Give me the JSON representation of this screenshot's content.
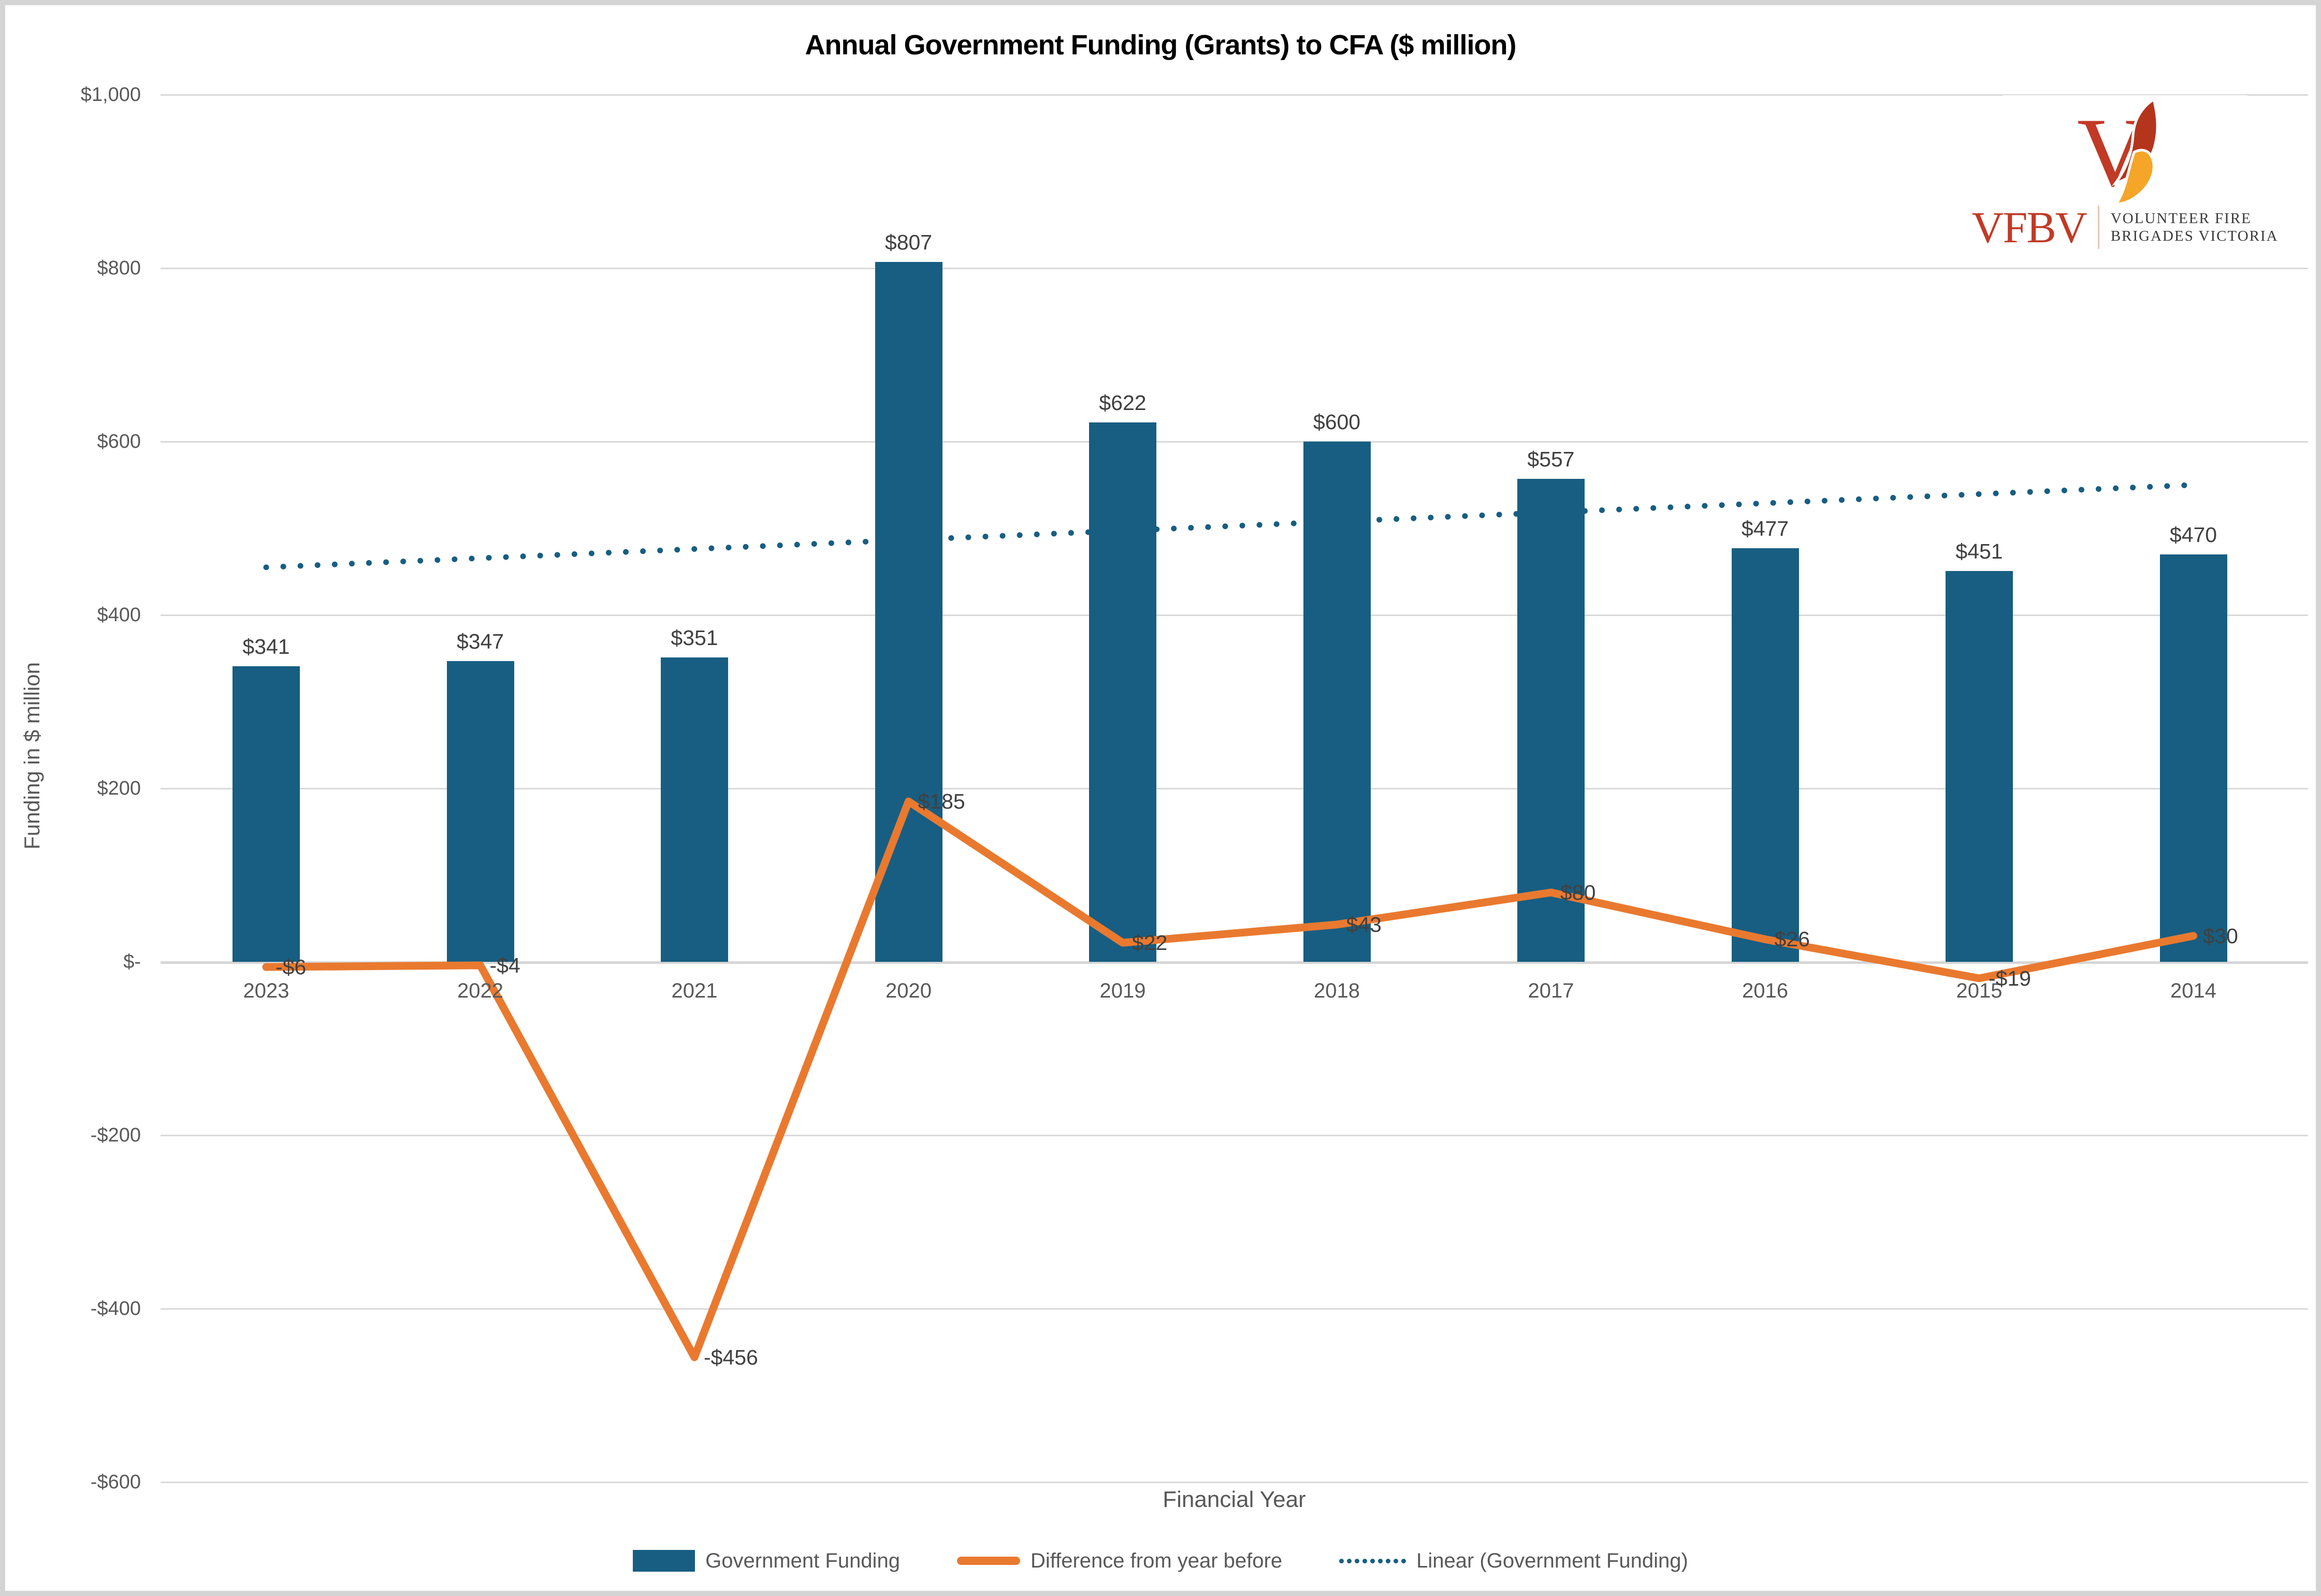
{
  "title": "Annual Government Funding (Grants) to CFA ($ million)",
  "y_axis": {
    "title": "Funding in $ million",
    "ticks": [
      {
        "value": 1000,
        "label": "$1,000"
      },
      {
        "value": 800,
        "label": "$800"
      },
      {
        "value": 600,
        "label": "$600"
      },
      {
        "value": 400,
        "label": "$400"
      },
      {
        "value": 200,
        "label": "$200"
      },
      {
        "value": 0,
        "label": "$-"
      },
      {
        "value": -200,
        "label": "-$200"
      },
      {
        "value": -400,
        "label": "-$400"
      },
      {
        "value": -600,
        "label": "-$600"
      }
    ]
  },
  "x_axis": {
    "title": "Financial Year"
  },
  "legend": {
    "items": [
      {
        "swatch": "bar",
        "label": "Government Funding"
      },
      {
        "swatch": "line",
        "label": "Difference from year before"
      },
      {
        "swatch": "dots",
        "label": "Linear (Government Funding)"
      }
    ]
  },
  "logo": {
    "acronym": "VFBV",
    "name_line1": "VOLUNTEER FIRE",
    "name_line2": "BRIGADES VICTORIA",
    "flame_icon": "flame-v-icon"
  },
  "colors": {
    "bar": "#175e82",
    "diff_line": "#e9792f",
    "trendline": "#175e82",
    "grid": "#d9d9d9",
    "axis_text": "#595959",
    "data_label_text": "#404040",
    "logo_red": "#c13a26",
    "logo_flame_red": "#b5341c",
    "logo_flame_orange": "#f5a528"
  },
  "chart_data": {
    "type": "bar",
    "title": "Annual Government Funding (Grants) to CFA ($ million)",
    "xlabel": "Financial Year",
    "ylabel": "Funding in $ million",
    "ylim": [
      -600,
      1000
    ],
    "ytick_step": 200,
    "grid": true,
    "legend_position": "bottom",
    "categories": [
      "2023",
      "2022",
      "2021",
      "2020",
      "2019",
      "2018",
      "2017",
      "2016",
      "2015",
      "2014"
    ],
    "series": [
      {
        "name": "Government Funding",
        "type": "bar",
        "values": [
          341,
          347,
          351,
          807,
          622,
          600,
          557,
          477,
          451,
          470
        ],
        "labels": [
          "$341",
          "$347",
          "$351",
          "$807",
          "$622",
          "$600",
          "$557",
          "$477",
          "$451",
          "$470"
        ]
      },
      {
        "name": "Difference from year before",
        "type": "line",
        "values": [
          -6,
          -4,
          -456,
          185,
          22,
          43,
          80,
          26,
          -19,
          30
        ],
        "labels": [
          "-$6",
          "-$4",
          "-$456",
          "$185",
          "$22",
          "$43",
          "$80",
          "$26",
          "-$19",
          "$30"
        ]
      },
      {
        "name": "Linear (Government Funding)",
        "type": "trendline",
        "style": "dotted",
        "endpoint_values": [
          455,
          550
        ]
      }
    ]
  }
}
